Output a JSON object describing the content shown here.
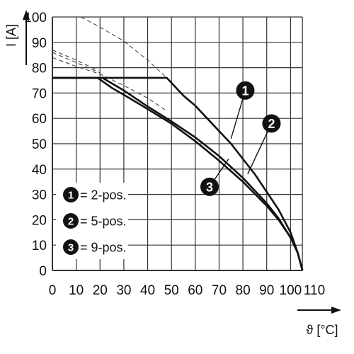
{
  "chart_data": {
    "type": "line",
    "xlabel": "ϑ [°C]",
    "ylabel": "I [A]",
    "xlim": [
      0,
      110
    ],
    "ylim": [
      0,
      100
    ],
    "grid": true,
    "x_ticks": [
      "0",
      "10",
      "20",
      "30",
      "40",
      "50",
      "60",
      "70",
      "80",
      "90",
      "100",
      "110"
    ],
    "y_ticks": [
      "0",
      "10",
      "20",
      "30",
      "40",
      "50",
      "60",
      "70",
      "80",
      "90",
      "100"
    ],
    "legend_position": "bottom-left",
    "legend": [
      {
        "marker": "1",
        "label": "= 2-pos."
      },
      {
        "marker": "2",
        "label": "= 5-pos."
      },
      {
        "marker": "3",
        "label": "= 9-pos."
      }
    ],
    "series": [
      {
        "marker": "1",
        "points": [
          [
            0,
            76
          ],
          [
            48,
            76
          ],
          [
            55,
            69
          ],
          [
            60,
            65
          ],
          [
            65,
            60
          ],
          [
            70,
            55
          ],
          [
            75,
            50
          ],
          [
            80,
            44
          ],
          [
            85,
            38
          ],
          [
            90,
            31
          ],
          [
            95,
            24
          ],
          [
            100,
            15
          ],
          [
            103,
            7
          ],
          [
            105,
            0
          ]
        ]
      },
      {
        "marker": "2",
        "points": [
          [
            0,
            76
          ],
          [
            19,
            76
          ],
          [
            25,
            72
          ],
          [
            30,
            69.3
          ],
          [
            40,
            63.7
          ],
          [
            50,
            57.9
          ],
          [
            60,
            51
          ],
          [
            70,
            43.3
          ],
          [
            80,
            35
          ],
          [
            90,
            25.5
          ],
          [
            95,
            20
          ],
          [
            100,
            13
          ],
          [
            103,
            7
          ],
          [
            105,
            0
          ]
        ]
      },
      {
        "marker": "3",
        "points": [
          [
            0,
            76
          ],
          [
            21,
            76
          ],
          [
            30,
            71
          ],
          [
            40,
            64.7
          ],
          [
            50,
            58.8
          ],
          [
            60,
            52.5
          ],
          [
            70,
            45.1
          ],
          [
            80,
            36.5
          ],
          [
            90,
            26.5
          ],
          [
            95,
            20.5
          ],
          [
            100,
            13
          ],
          [
            103,
            7
          ],
          [
            105,
            0
          ]
        ]
      }
    ],
    "dashed_extensions": [
      {
        "points": [
          [
            0,
            84
          ],
          [
            10,
            80.5
          ],
          [
            20,
            77.5
          ],
          [
            30,
            73
          ],
          [
            40,
            68
          ],
          [
            48,
            63
          ]
        ]
      },
      {
        "points": [
          [
            0,
            86
          ],
          [
            10,
            82
          ],
          [
            20,
            78
          ]
        ]
      },
      {
        "points": [
          [
            0,
            87
          ],
          [
            10,
            83
          ],
          [
            19,
            79
          ]
        ]
      },
      {
        "points": [
          [
            12,
            100
          ],
          [
            20,
            96
          ],
          [
            30,
            90.5
          ],
          [
            40,
            83
          ],
          [
            48,
            76
          ]
        ]
      }
    ],
    "callouts": [
      {
        "marker": "1",
        "badge": [
          81,
          71
        ],
        "leader_end": [
          75,
          52
        ]
      },
      {
        "marker": "2",
        "badge": [
          92,
          58
        ],
        "leader_end": [
          82,
          38
        ]
      },
      {
        "marker": "3",
        "badge": [
          66,
          33
        ],
        "leader_end": [
          74,
          44
        ]
      }
    ],
    "colors": {
      "line": "#111111",
      "grid": "#333333",
      "legend_bg": "#ffffff",
      "dashed": "#333333"
    }
  }
}
